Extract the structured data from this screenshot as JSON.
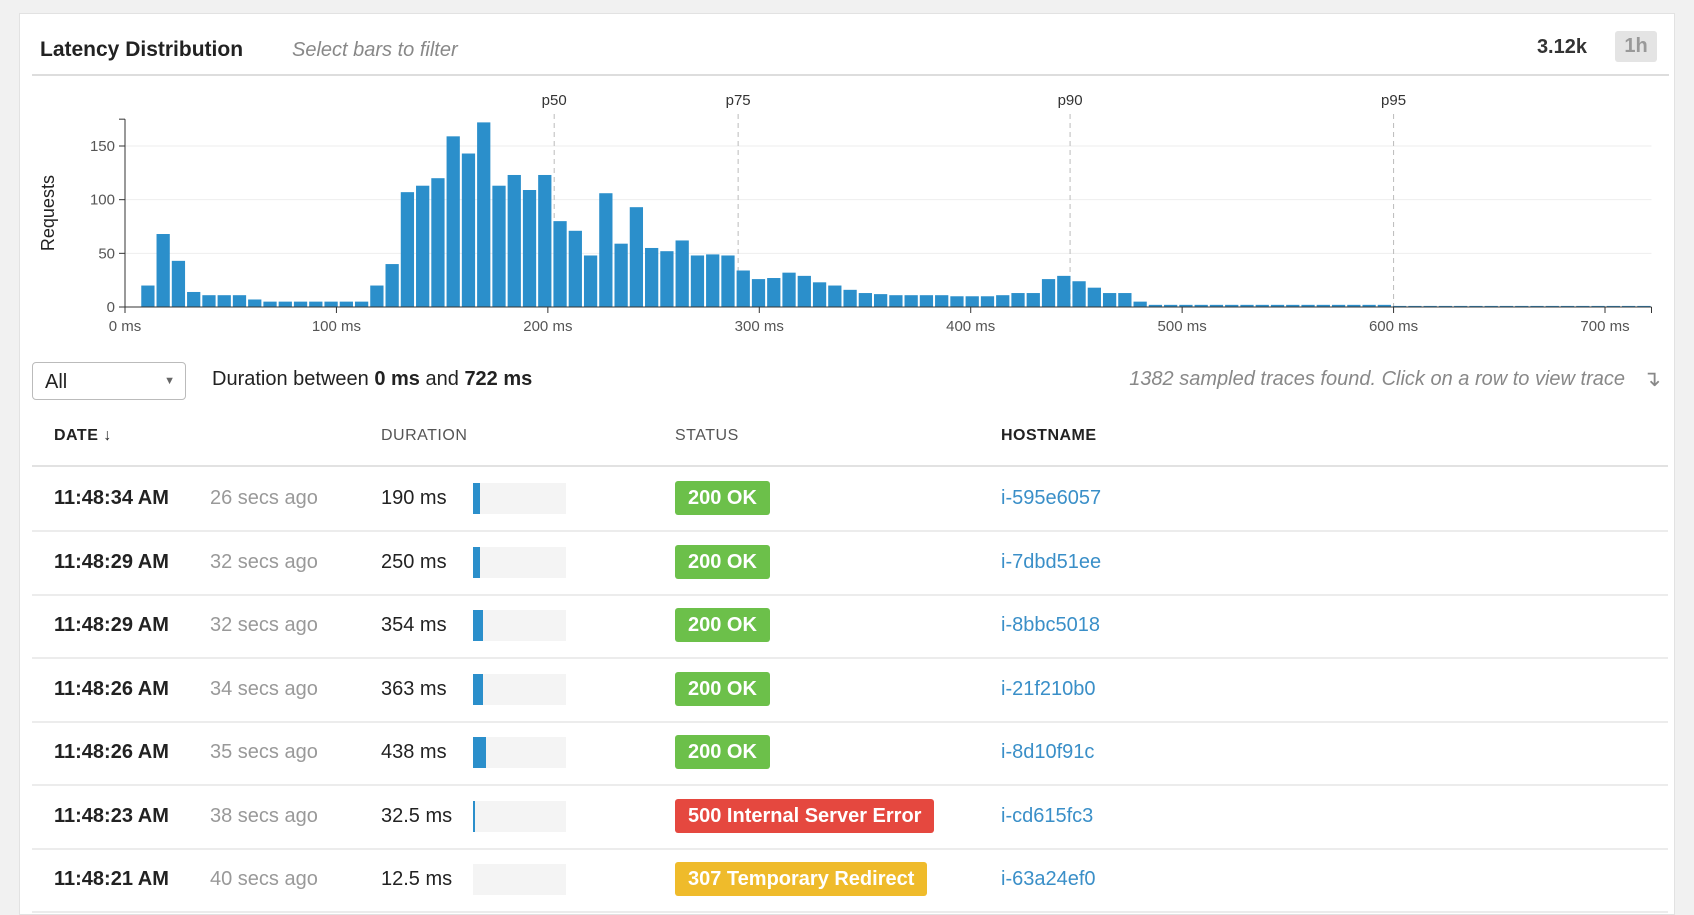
{
  "header": {
    "title": "Latency Distribution",
    "subtitle": "Select bars to filter",
    "count": "3.12k",
    "range_label": "1h"
  },
  "chart_data": {
    "type": "bar",
    "ylabel": "Requests",
    "xlim": [
      0,
      722
    ],
    "ylim": [
      0,
      175
    ],
    "yticks": [
      0,
      50,
      100,
      150
    ],
    "xticks": [
      0,
      100,
      200,
      300,
      400,
      500,
      600,
      700
    ],
    "xtick_labels": [
      "0 ms",
      "100 ms",
      "200 ms",
      "300 ms",
      "400 ms",
      "500 ms",
      "600 ms",
      "700 ms"
    ],
    "grid": true,
    "bin_width_ms": 7.22,
    "values": [
      0,
      20,
      68,
      43,
      14,
      11,
      11,
      11,
      7,
      5,
      5,
      5,
      5,
      5,
      5,
      5,
      20,
      40,
      107,
      113,
      120,
      159,
      143,
      172,
      113,
      123,
      109,
      123,
      80,
      71,
      48,
      106,
      59,
      93,
      55,
      52,
      62,
      48,
      49,
      48,
      34,
      26,
      27,
      32,
      29,
      23,
      20,
      16,
      13,
      12,
      11,
      11,
      11,
      11,
      10,
      10,
      10,
      11,
      13,
      13,
      26,
      29,
      24,
      18,
      13,
      13,
      5,
      2,
      2,
      2,
      2,
      2,
      2,
      2,
      2,
      2,
      2,
      2,
      2,
      2,
      2,
      2,
      2,
      1,
      1,
      1,
      1,
      1,
      1,
      1,
      1,
      1,
      1,
      1,
      1,
      1,
      1,
      1,
      1,
      1
    ],
    "percentiles": [
      {
        "label": "p50",
        "value": 203
      },
      {
        "label": "p75",
        "value": 290
      },
      {
        "label": "p90",
        "value": 447
      },
      {
        "label": "p95",
        "value": 600
      }
    ],
    "bar_color": "#2b8fcb"
  },
  "controls": {
    "select_value": "All",
    "duration_prefix": "Duration between",
    "duration_min": "0 ms",
    "duration_and": "and",
    "duration_max": "722 ms",
    "found_text": "1382 sampled traces found. Click on a row to view trace",
    "found_icon": "arrow-down-right-icon"
  },
  "table": {
    "headers": {
      "date": "DATE ↓",
      "duration": "DURATION",
      "status": "STATUS",
      "hostname": "HOSTNAME"
    },
    "rows": [
      {
        "time": "11:48:34 AM",
        "ago": "26 secs ago",
        "duration": "190 ms",
        "fill": 0.07,
        "status": "200 OK",
        "status_color": "#6cc04a",
        "host": "i-595e6057"
      },
      {
        "time": "11:48:29 AM",
        "ago": "32 secs ago",
        "duration": "250 ms",
        "fill": 0.08,
        "status": "200 OK",
        "status_color": "#6cc04a",
        "host": "i-7dbd51ee"
      },
      {
        "time": "11:48:29 AM",
        "ago": "32 secs ago",
        "duration": "354 ms",
        "fill": 0.11,
        "status": "200 OK",
        "status_color": "#6cc04a",
        "host": "i-8bbc5018"
      },
      {
        "time": "11:48:26 AM",
        "ago": "34 secs ago",
        "duration": "363 ms",
        "fill": 0.11,
        "status": "200 OK",
        "status_color": "#6cc04a",
        "host": "i-21f210b0"
      },
      {
        "time": "11:48:26 AM",
        "ago": "35 secs ago",
        "duration": "438 ms",
        "fill": 0.14,
        "status": "200 OK",
        "status_color": "#6cc04a",
        "host": "i-8d10f91c"
      },
      {
        "time": "11:48:23 AM",
        "ago": "38 secs ago",
        "duration": "32.5 ms",
        "fill": 0.015,
        "status": "500 Internal Server Error",
        "status_color": "#e5483f",
        "host": "i-cd615fc3"
      },
      {
        "time": "11:48:21 AM",
        "ago": "40 secs ago",
        "duration": "12.5 ms",
        "fill": 0,
        "status": "307 Temporary Redirect",
        "status_color": "#efbb2b",
        "host": "i-63a24ef0"
      }
    ]
  }
}
